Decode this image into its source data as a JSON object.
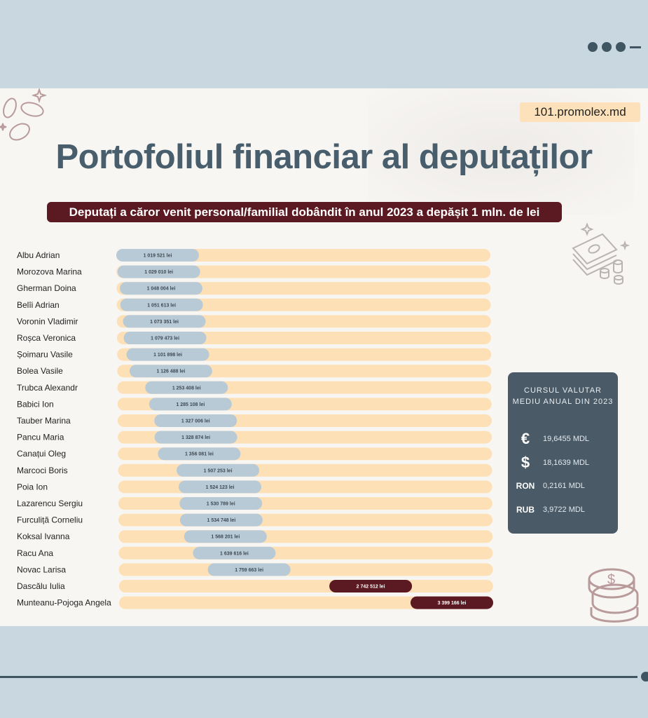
{
  "site": "101.promolex.md",
  "title": "Portofoliul financiar al deputaților",
  "subtitle": "Deputați a căror venit personal/familial dobândit în anul 2023 a depășit 1 mln.  de lei",
  "exchange": {
    "title_line1": "CURSUL VALUTAR",
    "title_line2": "MEDIU ANUAL DIN 2023",
    "rows": [
      {
        "symbol": "€",
        "value": "19,6455 MDL"
      },
      {
        "symbol": "$",
        "value": "18,1639 MDL"
      },
      {
        "symbol": "RON",
        "value": "0,2161 MDL"
      },
      {
        "symbol": "RUB",
        "value": "3,9722 MDL"
      }
    ]
  },
  "colors": {
    "track": "#fde0b6",
    "normal": "#b9cad7",
    "high": "#5b1a21",
    "heading": "#485e6c"
  },
  "chart_data": {
    "type": "bar",
    "orientation": "horizontal",
    "title": "Portofoliul financiar al deputaților",
    "subtitle": "Deputați a căror venit personal/familial dobândit în anul 2023 a depășit 1 mln.  de lei",
    "unit": "lei",
    "categories": [
      "Albu Adrian",
      "Morozova Marina",
      "Gherman Doina",
      "Belîi Adrian",
      "Voronin Vladimir",
      "Roșca Veronica",
      "Șoimaru Vasile",
      "Bolea Vasile",
      "Trubca Alexandr",
      "Babici Ion",
      "Tauber Marina",
      "Pancu Maria",
      "Canațui Oleg",
      "Marcoci Boris",
      "Poia Ion",
      "Lazarencu Sergiu",
      "Furculiță Corneliu",
      "Koksal Ivanna",
      "Racu Ana",
      "Novac Larisa",
      "Dascălu Iulia",
      "Munteanu-Pojoga Angela"
    ],
    "values": [
      1019521,
      1029010,
      1048004,
      1051613,
      1073351,
      1079473,
      1101898,
      1126488,
      1253408,
      1285108,
      1327006,
      1328874,
      1356081,
      1507253,
      1524123,
      1530789,
      1534748,
      1568201,
      1639616,
      1759663,
      2742512,
      3399166
    ],
    "labels": [
      "1 019 521 lei",
      "1 029 010 lei",
      "1 048 004 lei",
      "1 051 613 lei",
      "1 073 351 lei",
      "1 079 473 lei",
      "1 101 898 lei",
      "1 126 488 lei",
      "1 253 408 lei",
      "1 285 108 lei",
      "1 327 006 lei",
      "1 328 874 lei",
      "1 356 081 lei",
      "1 507 253 lei",
      "1 524 123 lei",
      "1 530 789 lei",
      "1 534 748 lei",
      "1 568 201 lei",
      "1 639 616 lei",
      "1 759 663 lei",
      "2 742 512 lei",
      "3 399 166 lei"
    ],
    "highlighted": [
      "Dascălu Iulia",
      "Munteanu-Pojoga Angela"
    ],
    "xlim": [
      0,
      3500000
    ]
  }
}
